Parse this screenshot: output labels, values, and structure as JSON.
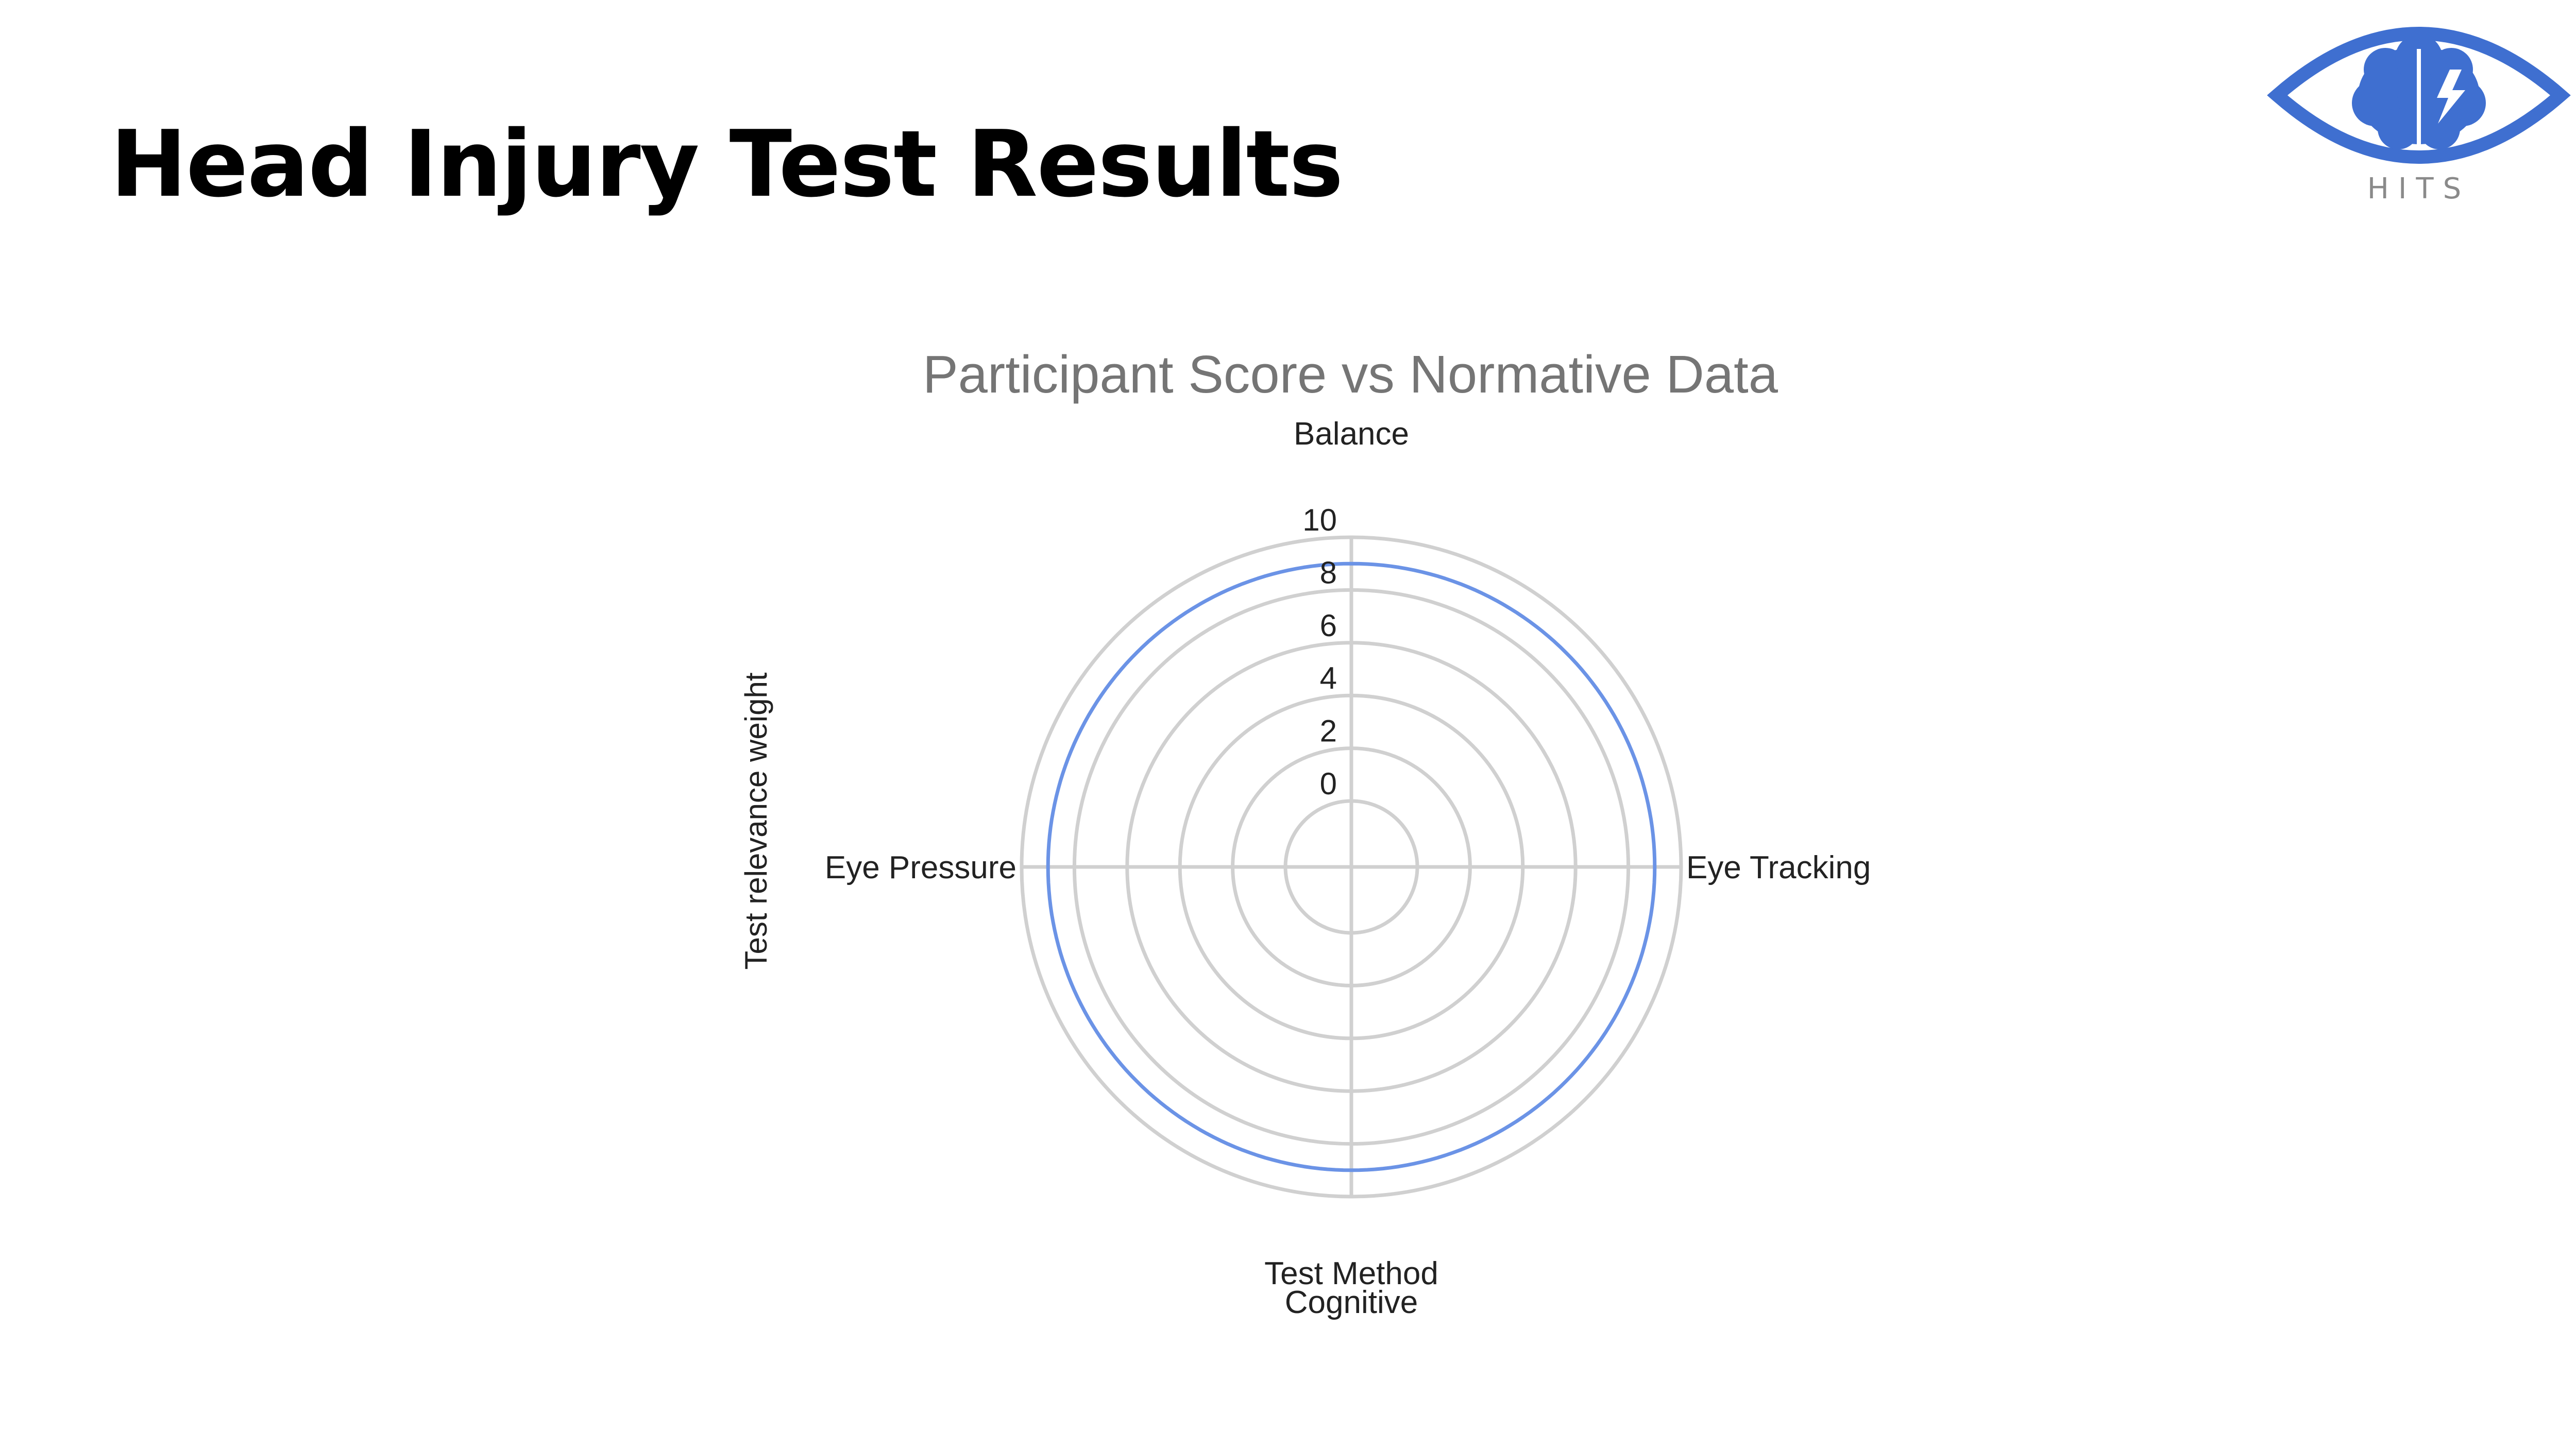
{
  "page": {
    "title": "Head Injury Test Results"
  },
  "logo": {
    "text": "HITS",
    "icon": "eye-brain-icon",
    "color": "#3f6fd0",
    "text_color": "#8a8a8a"
  },
  "chart_data": {
    "type": "radar",
    "title": "Participant Score vs Normative Data",
    "axis_title": "Test relevance weight",
    "axes": [
      {
        "label_lines": [
          "Balance"
        ]
      },
      {
        "label_lines": [
          "Eye Tracking"
        ]
      },
      {
        "label_lines": [
          "Test Method",
          "Cognitive"
        ]
      },
      {
        "label_lines": [
          "Eye Pressure"
        ]
      }
    ],
    "rlim": [
      0,
      10
    ],
    "ticks": [
      "0",
      "2",
      "4",
      "6",
      "8",
      "10"
    ],
    "tick_values": [
      0,
      2,
      4,
      6,
      8,
      10
    ],
    "grid": true,
    "series": [
      {
        "values": [
          9,
          9,
          9,
          9
        ],
        "color": "#6b93e6"
      }
    ],
    "colors": {
      "grid": "#d0d0d0",
      "title": "#757575",
      "labels": "#222222"
    }
  }
}
